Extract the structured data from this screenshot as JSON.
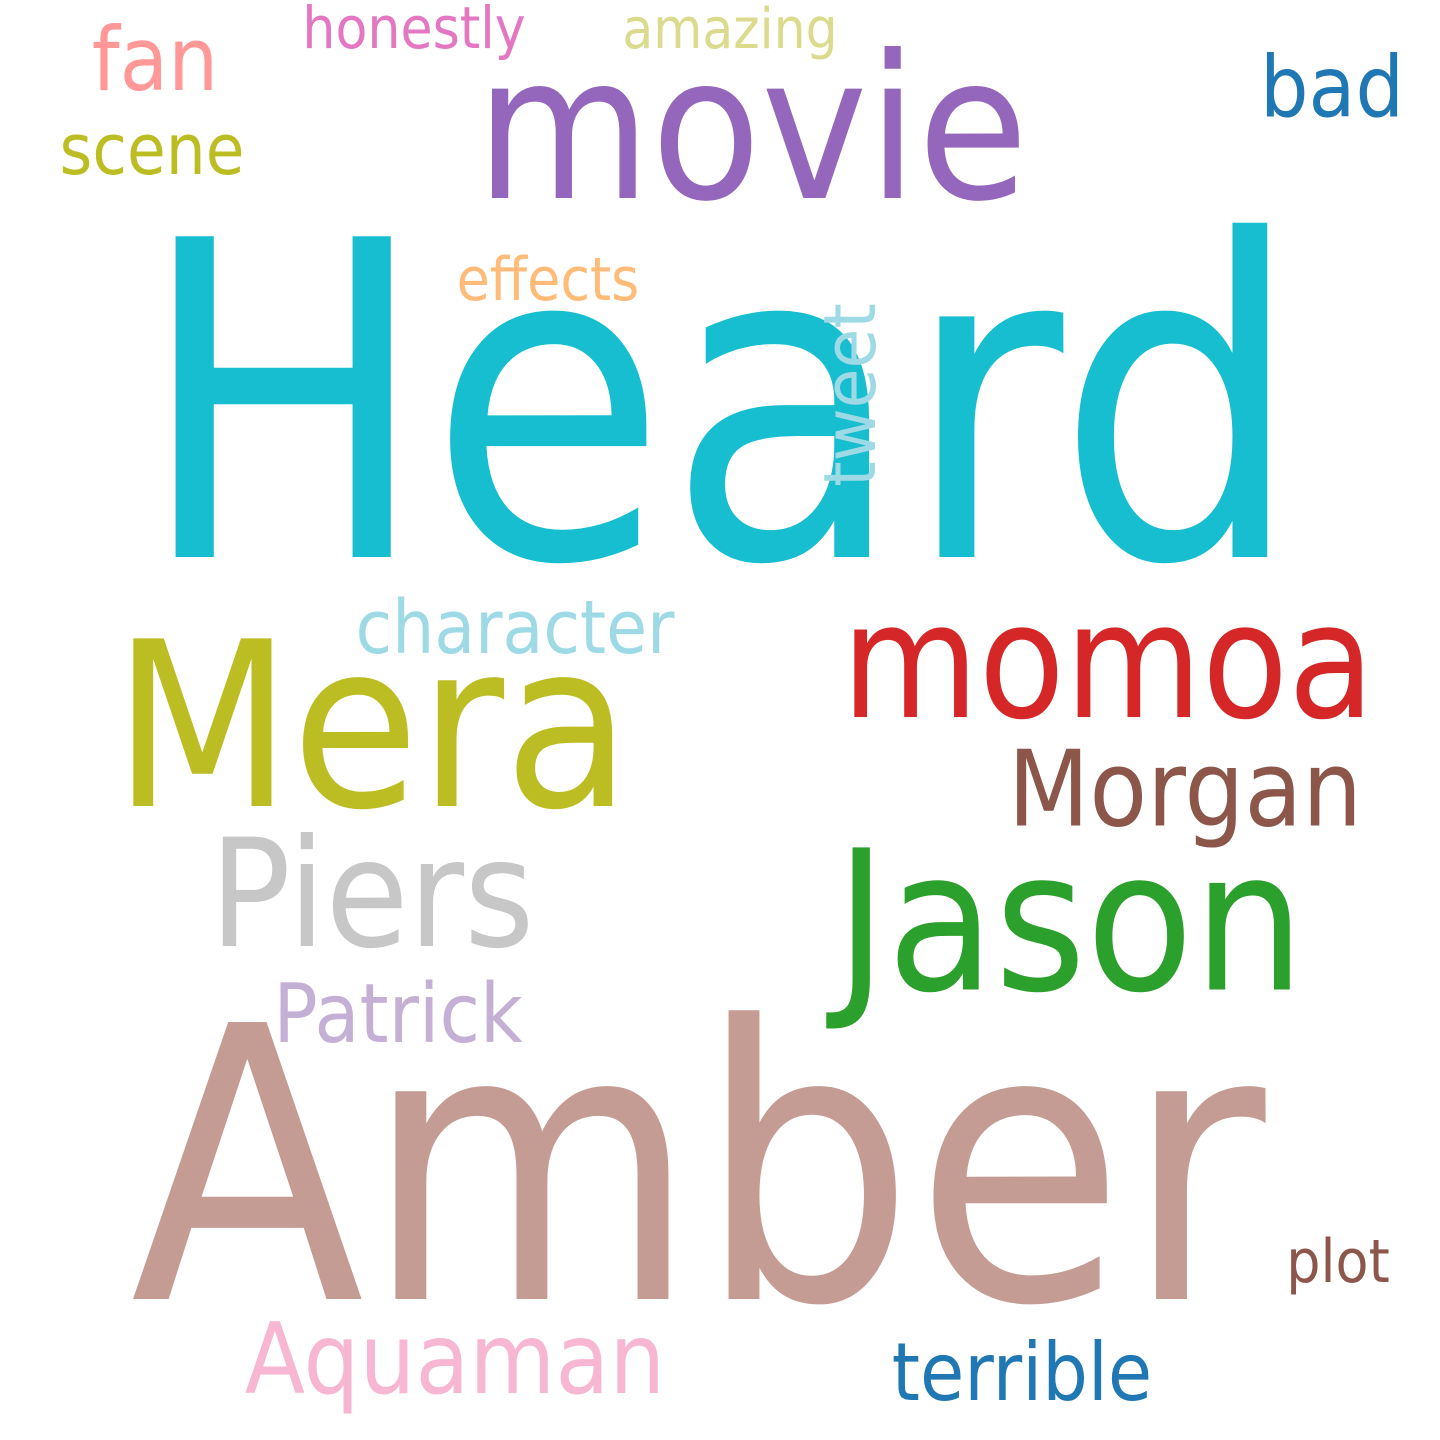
{
  "cloud": {
    "background": "#ffffff",
    "words": {
      "heard": {
        "text": "Heard",
        "color": "#17becf"
      },
      "amber": {
        "text": "Amber",
        "color": "#c49c94"
      },
      "movie": {
        "text": "movie",
        "color": "#9467bd"
      },
      "mera": {
        "text": "Mera",
        "color": "#bcbd22"
      },
      "jason": {
        "text": "Jason",
        "color": "#2ca02c"
      },
      "momoa": {
        "text": "momoa",
        "color": "#d62728"
      },
      "piers": {
        "text": "Piers",
        "color": "#c7c7c7"
      },
      "morgan": {
        "text": "Morgan",
        "color": "#8c564b"
      },
      "character": {
        "text": "character",
        "color": "#9edae5"
      },
      "patrick": {
        "text": "Patrick",
        "color": "#c5b0d5"
      },
      "aquaman": {
        "text": "Aquaman",
        "color": "#f7b6d2"
      },
      "terrible": {
        "text": "terrible",
        "color": "#1f77b4"
      },
      "plot": {
        "text": "plot",
        "color": "#8c564b"
      },
      "tweet": {
        "text": "tweet",
        "color": "#9edae5"
      },
      "effects": {
        "text": "effects",
        "color": "#ffbb78"
      },
      "bad": {
        "text": "bad",
        "color": "#1f77b4"
      },
      "fan": {
        "text": "fan",
        "color": "#ff9896"
      },
      "scene": {
        "text": "scene",
        "color": "#bcbd22"
      },
      "honestly": {
        "text": "honestly",
        "color": "#e377c2"
      },
      "amazing": {
        "text": "amazing",
        "color": "#dbdb8d"
      }
    }
  }
}
